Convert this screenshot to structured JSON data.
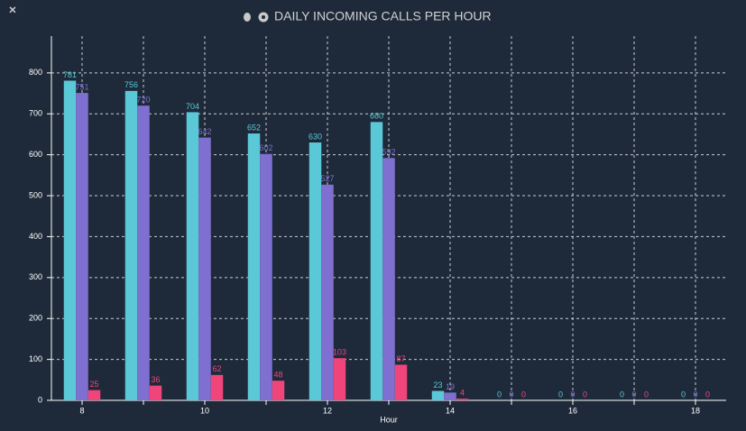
{
  "chart_data": {
    "type": "bar",
    "title": "DAILY INCOMING CALLS PER HOUR",
    "x_label": "Hour",
    "categories": [
      8,
      null,
      10,
      null,
      12,
      null,
      14,
      null,
      16,
      null,
      18
    ],
    "series": [
      {
        "color": "#5bc8d8",
        "values": [
          781,
          756,
          704,
          652,
          630,
          680,
          23,
          0,
          0,
          0,
          0
        ]
      },
      {
        "color": "#7f6fd0",
        "values": [
          751,
          720,
          642,
          602,
          527,
          592,
          19,
          0,
          0,
          0,
          0
        ]
      },
      {
        "color": "#f0457a",
        "values": [
          25,
          36,
          62,
          48,
          103,
          87,
          4,
          0,
          0,
          0,
          0
        ]
      }
    ],
    "ylim": [
      0,
      890
    ],
    "yticks": [
      0,
      100,
      200,
      300,
      400,
      500,
      600,
      700,
      800
    ],
    "grid": true
  }
}
